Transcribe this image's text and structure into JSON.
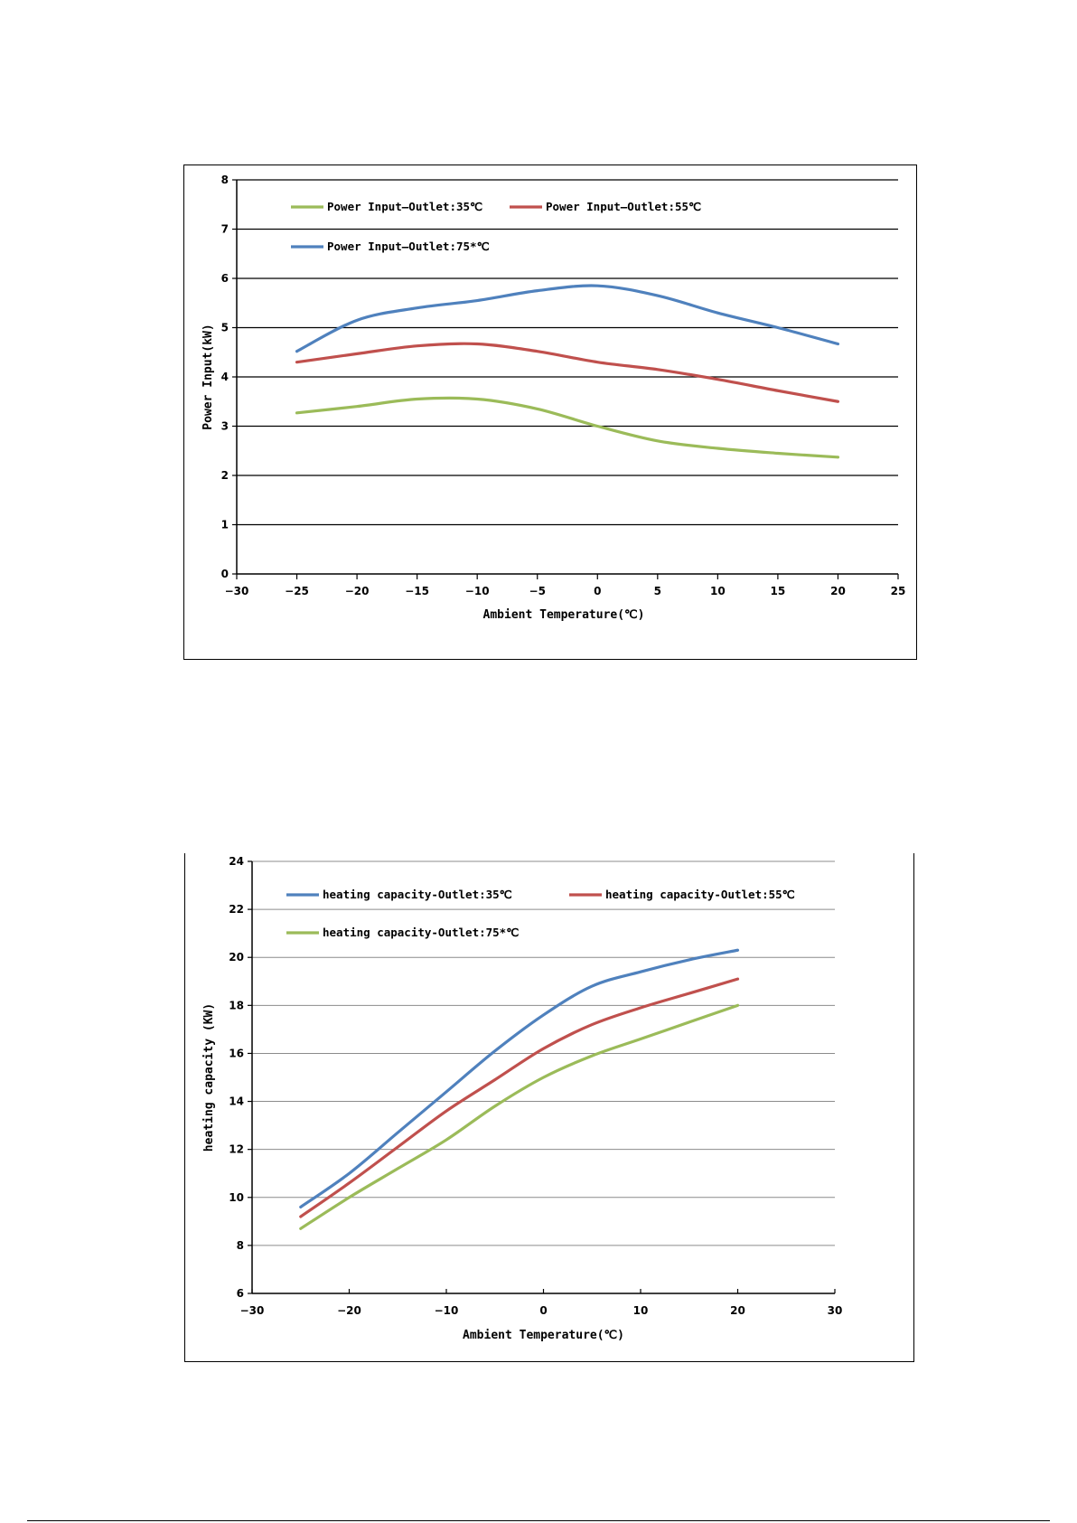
{
  "chart_data": [
    {
      "type": "line",
      "title": "",
      "xlabel": "Ambient Temperature(℃)",
      "ylabel": "Power Input(kW)",
      "xlim": [
        -30,
        25
      ],
      "ylim": [
        0,
        8
      ],
      "xticks": [
        -30,
        -25,
        -20,
        -15,
        -10,
        -5,
        0,
        5,
        10,
        15,
        20,
        25
      ],
      "yticks": [
        0,
        1,
        2,
        3,
        4,
        5,
        6,
        7,
        8
      ],
      "xtick_labels": [
        "−30",
        "−25",
        "−20",
        "−15",
        "−10",
        "−5",
        "0",
        "5",
        "10",
        "15",
        "20",
        "25"
      ],
      "ytick_labels": [
        "0",
        "1",
        "2",
        "3",
        "4",
        "5",
        "6",
        "7",
        "8"
      ],
      "grid": "horizontal",
      "legend_position": "top-left",
      "x": [
        -25,
        -20,
        -15,
        -10,
        -5,
        0,
        5,
        10,
        15,
        20
      ],
      "series": [
        {
          "name": "Power Input—Outlet:35℃",
          "color": "#9BBB59",
          "values": [
            3.27,
            3.4,
            3.55,
            3.55,
            3.35,
            3.0,
            2.7,
            2.55,
            2.45,
            2.37
          ]
        },
        {
          "name": "Power Input—Outlet:55℃",
          "color": "#C0504D",
          "values": [
            4.3,
            4.47,
            4.63,
            4.67,
            4.52,
            4.3,
            4.15,
            3.95,
            3.72,
            3.5
          ]
        },
        {
          "name": "Power Input—Outlet:75*℃",
          "color": "#4F81BD",
          "values": [
            4.52,
            5.15,
            5.4,
            5.55,
            5.75,
            5.85,
            5.65,
            5.3,
            5.0,
            4.67
          ]
        }
      ]
    },
    {
      "type": "line",
      "title": "",
      "xlabel": "Ambient Temperature(℃)",
      "ylabel": "heating capacity (KW)",
      "xlim": [
        -30,
        30
      ],
      "ylim": [
        6,
        24
      ],
      "xticks": [
        -30,
        -20,
        -10,
        0,
        10,
        20,
        30
      ],
      "yticks": [
        6,
        8,
        10,
        12,
        14,
        16,
        18,
        20,
        22,
        24
      ],
      "xtick_labels": [
        "−30",
        "−20",
        "−10",
        "0",
        "10",
        "20",
        "30"
      ],
      "ytick_labels": [
        "6",
        "8",
        "10",
        "12",
        "14",
        "16",
        "18",
        "20",
        "22",
        "24"
      ],
      "grid": "horizontal",
      "legend_position": "top-left",
      "x": [
        -25,
        -20,
        -15,
        -10,
        -5,
        0,
        5,
        10,
        15,
        20
      ],
      "series": [
        {
          "name": "heating capacity-Outlet:35℃",
          "color": "#4F81BD",
          "values": [
            9.6,
            11.0,
            12.7,
            14.4,
            16.1,
            17.6,
            18.8,
            19.4,
            19.9,
            20.3
          ]
        },
        {
          "name": "heating capacity-Outlet:55℃",
          "color": "#C0504D",
          "values": [
            9.2,
            10.6,
            12.1,
            13.6,
            14.9,
            16.2,
            17.2,
            17.9,
            18.5,
            19.1
          ]
        },
        {
          "name": "heating capacity-Outlet:75*℃",
          "color": "#9BBB59",
          "values": [
            8.7,
            10.0,
            11.2,
            12.4,
            13.8,
            15.0,
            15.9,
            16.6,
            17.3,
            18.0
          ]
        }
      ]
    }
  ]
}
